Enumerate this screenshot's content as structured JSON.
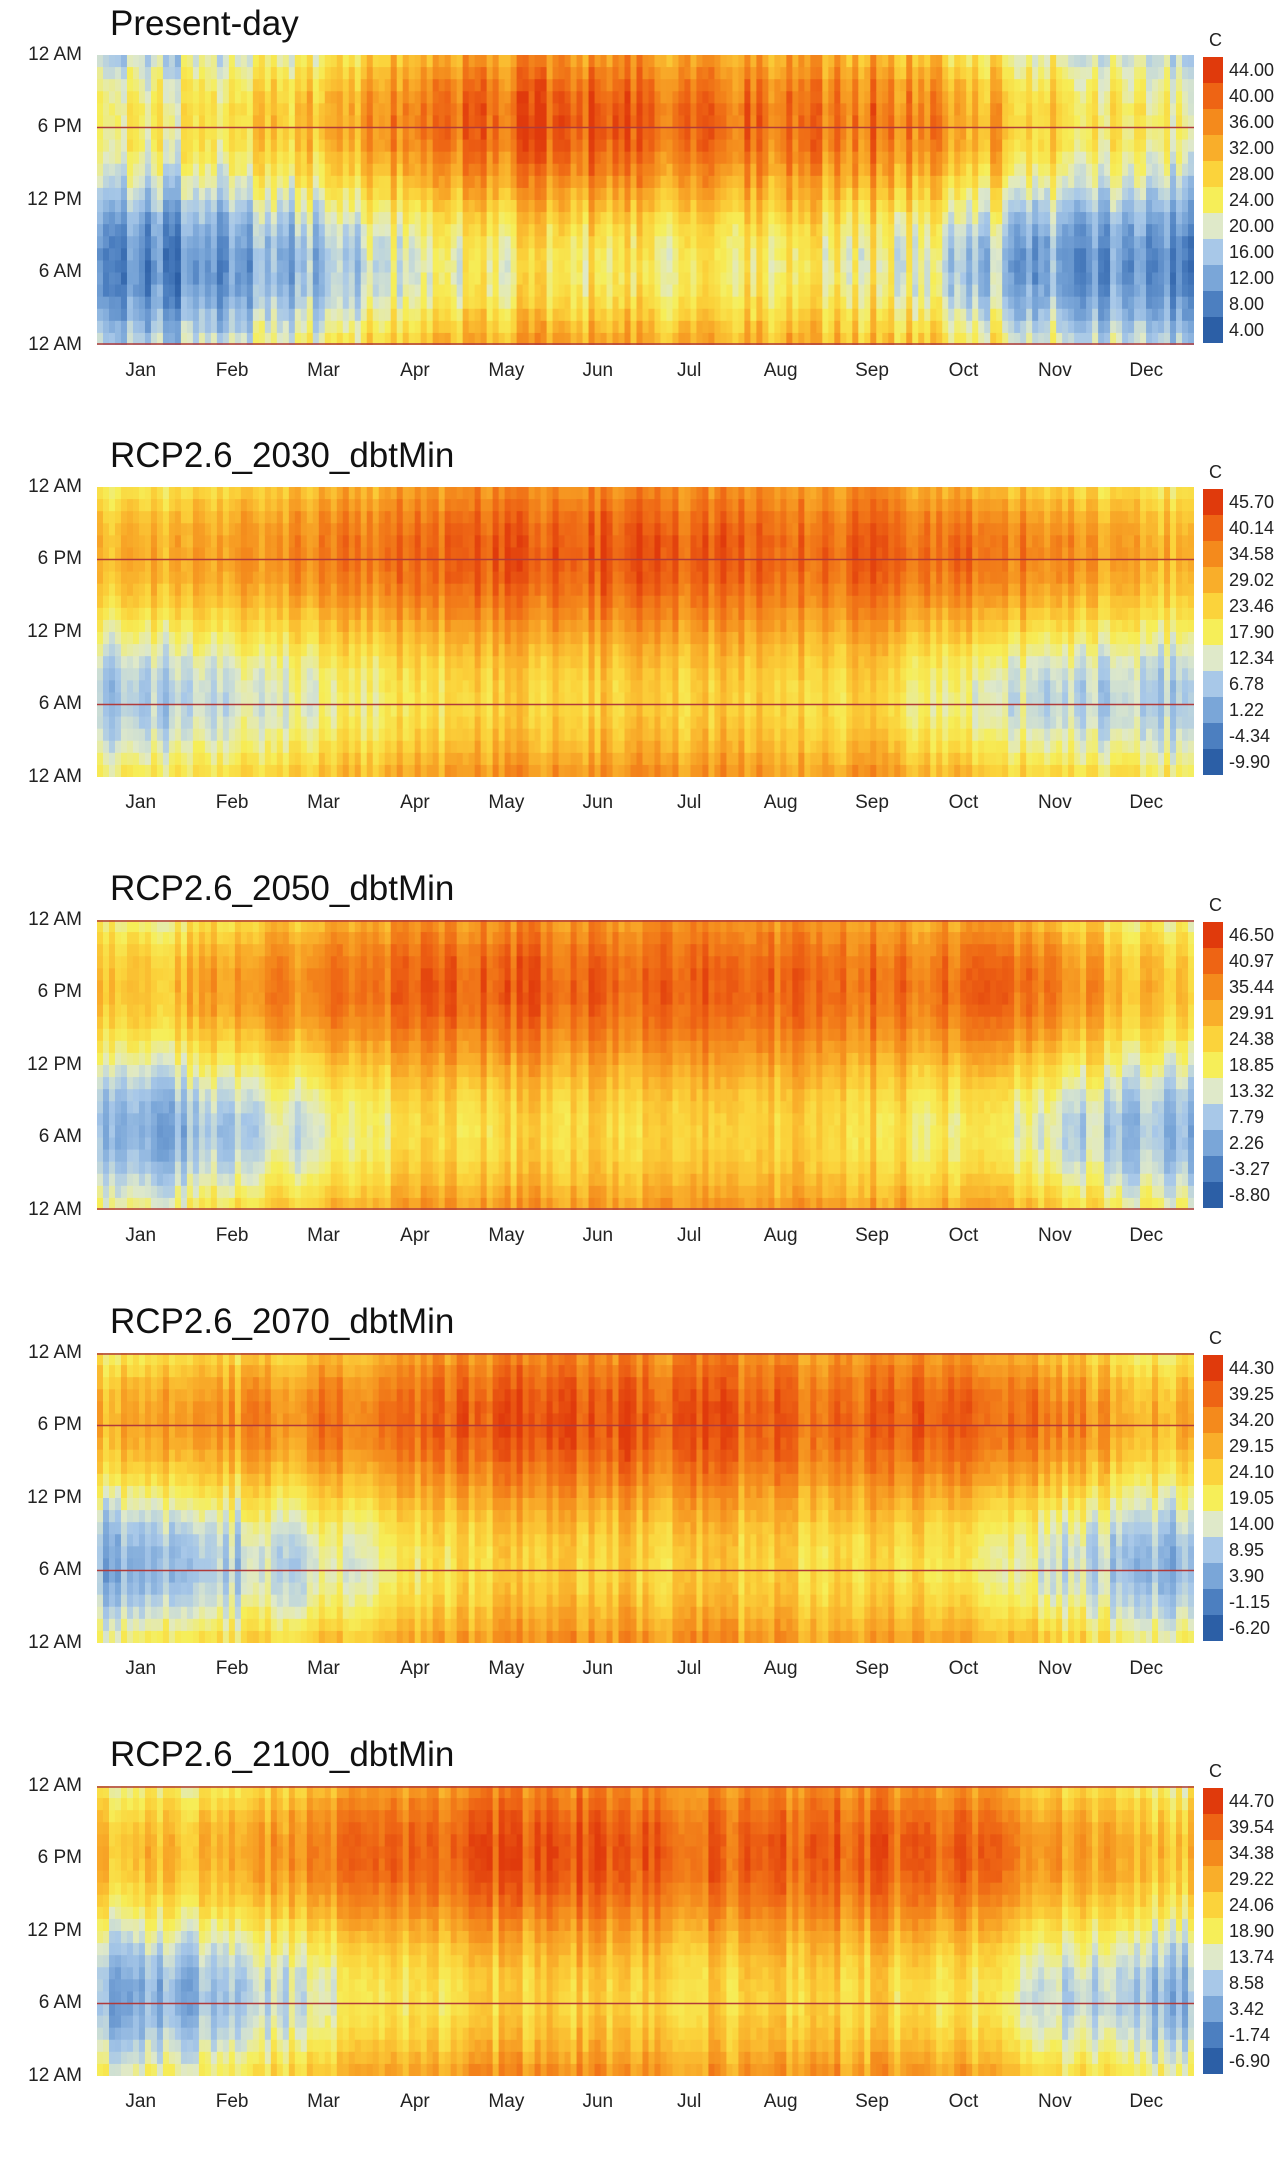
{
  "months": [
    "Jan",
    "Feb",
    "Mar",
    "Apr",
    "May",
    "Jun",
    "Jul",
    "Aug",
    "Sep",
    "Oct",
    "Nov",
    "Dec"
  ],
  "y_labels": [
    "12 AM",
    "6 PM",
    "12 PM",
    "6 AM",
    "12 AM"
  ],
  "unit": "C",
  "colors": [
    "#2c5fa6",
    "#4c7fc0",
    "#7aa6d8",
    "#a8c8e8",
    "#dfe9c9",
    "#f6ee58",
    "#fbd33b",
    "#f9ae2a",
    "#f48a1c",
    "#ee6414",
    "#e03a0c"
  ],
  "chart_data": [
    {
      "type": "heatmap",
      "title": "Present-day",
      "x": "month of year (Jan–Dec)",
      "y": "hour of day (12 AM bottom → 6 AM → 12 PM → 6 PM → 12 AM top)",
      "colorbar_ticks": [
        "44.00",
        "40.00",
        "36.00",
        "32.00",
        "28.00",
        "24.00",
        "20.00",
        "16.00",
        "12.00",
        "8.00",
        "4.00"
      ],
      "vmin": 4.0,
      "vmax": 44.0,
      "monthly_min": [
        8,
        11,
        15,
        21,
        24,
        25,
        24,
        24,
        23,
        17,
        12,
        9
      ],
      "monthly_max": [
        23,
        26,
        31,
        38,
        40,
        42,
        39,
        38,
        38,
        34,
        28,
        23
      ],
      "ref_lines_hours": [
        18,
        0
      ]
    },
    {
      "type": "heatmap",
      "title": "RCP2.6_2030_dbtMin",
      "x": "month of year (Jan–Dec)",
      "y": "hour of day",
      "colorbar_ticks": [
        "45.70",
        "40.14",
        "34.58",
        "29.02",
        "23.46",
        "17.90",
        "12.34",
        "6.78",
        "1.22",
        "-4.34",
        "-9.90"
      ],
      "vmin": -9.9,
      "vmax": 45.7,
      "monthly_min": [
        6,
        10,
        15,
        20,
        23,
        24,
        24,
        24,
        22,
        14,
        10,
        7
      ],
      "monthly_max": [
        28,
        31,
        36,
        39,
        41,
        42,
        41,
        40,
        40,
        38,
        36,
        28
      ],
      "ref_lines_hours": [
        18,
        6
      ]
    },
    {
      "type": "heatmap",
      "title": "RCP2.6_2050_dbtMin",
      "x": "month of year (Jan–Dec)",
      "y": "hour of day",
      "colorbar_ticks": [
        "46.50",
        "40.97",
        "35.44",
        "29.91",
        "24.38",
        "18.85",
        "13.32",
        "7.79",
        "2.26",
        "-3.27",
        "-8.80"
      ],
      "vmin": -8.8,
      "vmax": 46.5,
      "monthly_min": [
        4,
        8,
        15,
        21,
        23,
        25,
        24,
        24,
        23,
        18,
        12,
        6
      ],
      "monthly_max": [
        27,
        33,
        38,
        40,
        42,
        42,
        41,
        40,
        40,
        39,
        37,
        27
      ],
      "ref_lines_hours": [
        24,
        0
      ]
    },
    {
      "type": "heatmap",
      "title": "RCP2.6_2070_dbtMin",
      "x": "month of year (Jan–Dec)",
      "y": "hour of day",
      "colorbar_ticks": [
        "44.30",
        "39.25",
        "34.20",
        "29.15",
        "24.10",
        "19.05",
        "14.00",
        "8.95",
        "3.90",
        "-1.15",
        "-6.20"
      ],
      "vmin": -6.2,
      "vmax": 44.3,
      "monthly_min": [
        5,
        9,
        14,
        21,
        24,
        25,
        24,
        24,
        23,
        19,
        13,
        7
      ],
      "monthly_max": [
        30,
        32,
        36,
        39,
        41,
        42,
        40,
        39,
        39,
        39,
        36,
        28
      ],
      "ref_lines_hours": [
        24,
        18,
        6
      ]
    },
    {
      "type": "heatmap",
      "title": "RCP2.6_2100_dbtMin",
      "x": "month of year (Jan–Dec)",
      "y": "hour of day",
      "colorbar_ticks": [
        "44.70",
        "39.54",
        "34.38",
        "29.22",
        "24.06",
        "18.90",
        "13.74",
        "8.58",
        "3.42",
        "-1.74",
        "-6.90"
      ],
      "vmin": -6.9,
      "vmax": 44.7,
      "monthly_min": [
        4,
        9,
        15,
        21,
        23,
        25,
        24,
        24,
        23,
        20,
        12,
        7
      ],
      "monthly_max": [
        27,
        30,
        36,
        39,
        41,
        42,
        40,
        40,
        40,
        39,
        33,
        27
      ],
      "ref_lines_hours": [
        24,
        6
      ]
    }
  ]
}
